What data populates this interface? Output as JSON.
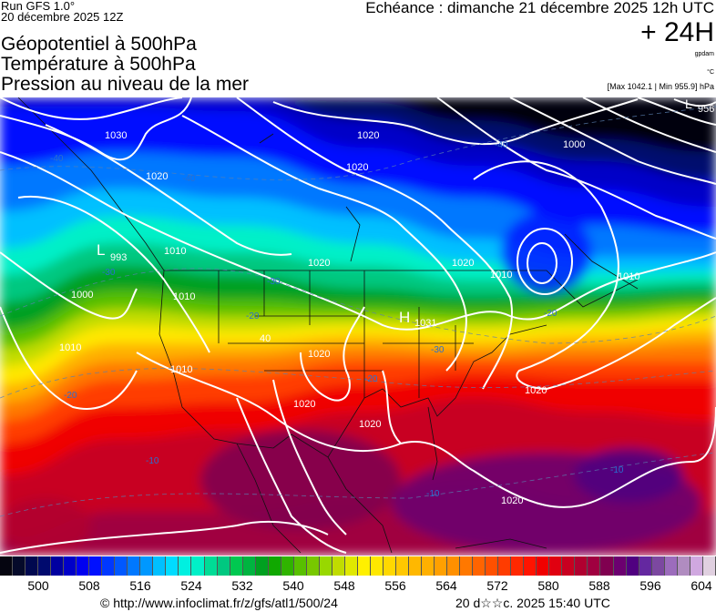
{
  "header": {
    "run": "Run GFS 1.0°",
    "run_date": "20 décembre 2025 12Z",
    "title_lines": [
      "Géopotentiel à 500hPa",
      "Température à 500hPa",
      "Pression au niveau de la mer"
    ],
    "echeance": "Echéance : dimanche 21 décembre 2025 12h UTC",
    "lead": "+ 24H",
    "unit_geo": "gpdam",
    "unit_temp": "°C",
    "pressure_range": "[Max 1042.1 | Min 955.9] hPa"
  },
  "map": {
    "pressure_labels": [
      "1030",
      "1020",
      "1010",
      "1000",
      "1010",
      "1010",
      "1020",
      "1020",
      "1020",
      "1020",
      "1010",
      "1000",
      "1010",
      "1020",
      "1010",
      "1020",
      "1020",
      "1020",
      "1020"
    ],
    "centers": [
      {
        "type": "L",
        "value": "993"
      },
      {
        "type": "H",
        "value": "1031"
      },
      {
        "type": "L",
        "value": "956"
      }
    ],
    "temp_labels": [
      "-40",
      "-40",
      "-40",
      "-30",
      "-30",
      "-30",
      "-20",
      "-20",
      "-20",
      "-20",
      "-10",
      "-10",
      "-10",
      "40"
    ]
  },
  "legend": {
    "ticks": [
      "500",
      "508",
      "516",
      "524",
      "532",
      "540",
      "548",
      "556",
      "564",
      "572",
      "580",
      "588",
      "596",
      "604"
    ],
    "colors": [
      "#050510",
      "#050a2a",
      "#00084f",
      "#000a6e",
      "#0000a0",
      "#0000c8",
      "#0000f0",
      "#0010ff",
      "#0038ff",
      "#0058ff",
      "#0078ff",
      "#0098ff",
      "#00c0ff",
      "#00dcff",
      "#00f0e0",
      "#00f0c8",
      "#00dc96",
      "#00c880",
      "#00c850",
      "#00b440",
      "#00a020",
      "#10a800",
      "#30b400",
      "#58c000",
      "#78c800",
      "#98d800",
      "#c0dc00",
      "#e0e800",
      "#fff000",
      "#ffe800",
      "#ffd800",
      "#ffc800",
      "#ffb800",
      "#ffb000",
      "#ffa000",
      "#ff9000",
      "#ff7800",
      "#ff6400",
      "#ff5000",
      "#ff3c00",
      "#ff2800",
      "#ff1400",
      "#f00000",
      "#e00010",
      "#c80020",
      "#b00030",
      "#a00040",
      "#800050",
      "#6c0070",
      "#500080",
      "#6428a0",
      "#7c48a0",
      "#9c6cbc",
      "#b08cc0",
      "#d0a8e0",
      "#e0d0e0"
    ]
  },
  "footer": {
    "copyright": "© http://www.infoclimat.fr/z/gfs/atl1/500/24",
    "generated": "20 d☆☆c. 2025 15:40 UTC"
  }
}
